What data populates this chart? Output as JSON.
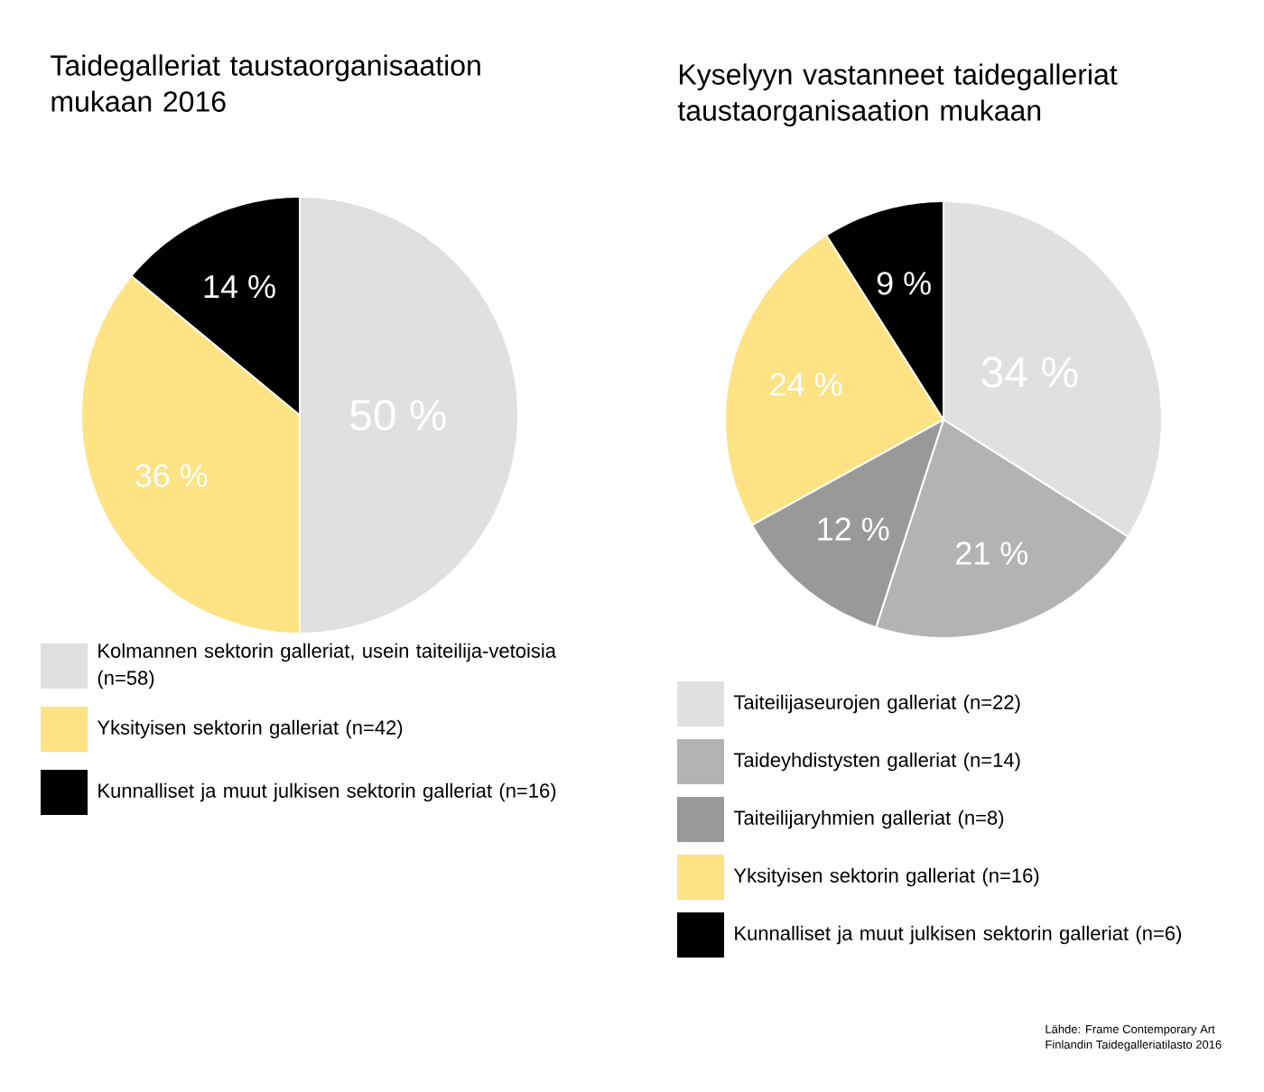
{
  "chart_data": [
    {
      "type": "pie",
      "title": "Taidegalleriat taustaorganisaation mukaan 2016",
      "categories": [
        "Kolmannen sektorin galleriat, usein taiteilija-vetoisia (n=58)",
        "Yksityisen sektorin galleriat (n=42)",
        "Kunnalliset ja muut julkisen sektorin galleriat (n=16)"
      ],
      "values": [
        50,
        36,
        14
      ],
      "value_labels": [
        "50 %",
        "36 %",
        "14 %"
      ],
      "colors": [
        "#e0e0e0",
        "#fde384",
        "#000000"
      ],
      "legend": "bottom"
    },
    {
      "type": "pie",
      "title": "Kyselyyn vastanneet taidegalleriat taustaorganisaation mukaan",
      "categories": [
        "Taiteilijaseurojen galleriat (n=22)",
        "Taideyhdistysten galleriat (n=14)",
        "Taiteilijaryhmien galleriat (n=8)",
        "Yksityisen sektorin galleriat (n=16)",
        "Kunnalliset ja muut julkisen sektorin galleriat (n=6)"
      ],
      "values": [
        34,
        21,
        12,
        24,
        9
      ],
      "value_labels": [
        "34 %",
        "21 %",
        "12 %",
        "24 %",
        "9 %"
      ],
      "colors": [
        "#e0e0e0",
        "#b3b3b3",
        "#999999",
        "#fde384",
        "#000000"
      ],
      "legend": "bottom",
      "annotations": [
        "Lähde: Frame Contemporary Art",
        "Finlandin Taidegalleriatilasto 2016"
      ]
    }
  ]
}
